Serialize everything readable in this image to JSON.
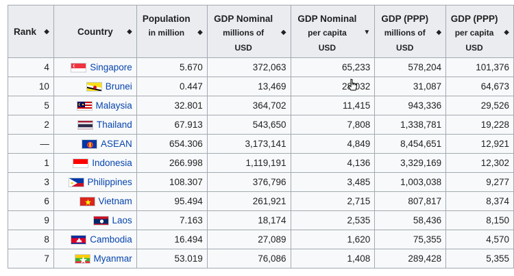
{
  "table": {
    "headers": {
      "rank": "Rank",
      "country": "Country",
      "population": [
        "Population",
        "in million"
      ],
      "gdp_nominal": [
        "GDP Nominal",
        "millions of",
        "USD"
      ],
      "gdp_nominal_pc": [
        "GDP Nominal",
        "per capita",
        "USD"
      ],
      "gdp_ppp": [
        "GDP (PPP)",
        "millions of",
        "USD"
      ],
      "gdp_ppp_pc": [
        "GDP (PPP)",
        "per capita",
        "USD"
      ]
    },
    "sort_icons": {
      "both": "◆",
      "desc": "▼"
    },
    "rows": [
      {
        "rank": "4",
        "country": "Singapore",
        "flag": "singapore",
        "population": "5.670",
        "gdp_nominal": "372,063",
        "gdp_nominal_pc": "65,233",
        "gdp_ppp": "578,204",
        "gdp_ppp_pc": "101,376"
      },
      {
        "rank": "10",
        "country": "Brunei",
        "flag": "brunei",
        "population": "0.447",
        "gdp_nominal": "13,469",
        "gdp_nominal_pc": "28,032",
        "gdp_ppp": "31,087",
        "gdp_ppp_pc": "64,673"
      },
      {
        "rank": "5",
        "country": "Malaysia",
        "flag": "malaysia",
        "population": "32.801",
        "gdp_nominal": "364,702",
        "gdp_nominal_pc": "11,415",
        "gdp_ppp": "943,336",
        "gdp_ppp_pc": "29,526"
      },
      {
        "rank": "2",
        "country": "Thailand",
        "flag": "thailand",
        "population": "67.913",
        "gdp_nominal": "543,650",
        "gdp_nominal_pc": "7,808",
        "gdp_ppp": "1,338,781",
        "gdp_ppp_pc": "19,228"
      },
      {
        "rank": "—",
        "country": "ASEAN",
        "flag": "asean",
        "population": "654.306",
        "gdp_nominal": "3,173,141",
        "gdp_nominal_pc": "4,849",
        "gdp_ppp": "8,454,651",
        "gdp_ppp_pc": "12,921"
      },
      {
        "rank": "1",
        "country": "Indonesia",
        "flag": "indonesia",
        "population": "266.998",
        "gdp_nominal": "1,119,191",
        "gdp_nominal_pc": "4,136",
        "gdp_ppp": "3,329,169",
        "gdp_ppp_pc": "12,302"
      },
      {
        "rank": "3",
        "country": "Philippines",
        "flag": "philippines",
        "population": "108.307",
        "gdp_nominal": "376,796",
        "gdp_nominal_pc": "3,485",
        "gdp_ppp": "1,003,038",
        "gdp_ppp_pc": "9,277"
      },
      {
        "rank": "6",
        "country": "Vietnam",
        "flag": "vietnam",
        "population": "95.494",
        "gdp_nominal": "261,921",
        "gdp_nominal_pc": "2,715",
        "gdp_ppp": "807,817",
        "gdp_ppp_pc": "8,374"
      },
      {
        "rank": "9",
        "country": "Laos",
        "flag": "laos",
        "population": "7.163",
        "gdp_nominal": "18,174",
        "gdp_nominal_pc": "2,535",
        "gdp_ppp": "58,436",
        "gdp_ppp_pc": "8,150"
      },
      {
        "rank": "8",
        "country": "Cambodia",
        "flag": "cambodia",
        "population": "16.494",
        "gdp_nominal": "27,089",
        "gdp_nominal_pc": "1,620",
        "gdp_ppp": "75,355",
        "gdp_ppp_pc": "4,570"
      },
      {
        "rank": "7",
        "country": "Myanmar",
        "flag": "myanmar",
        "population": "53.019",
        "gdp_nominal": "76,086",
        "gdp_nominal_pc": "1,408",
        "gdp_ppp": "289,428",
        "gdp_ppp_pc": "5,355"
      }
    ]
  },
  "colors": {
    "link": "#0645ad",
    "header_bg": "#eaecf0",
    "cell_bg": "#f8f9fa",
    "border": "#a2a9b1"
  },
  "icons": {
    "sort": "sort-both-icon",
    "sort_active": "sort-desc-icon",
    "cursor": "pointer-cursor-icon"
  }
}
